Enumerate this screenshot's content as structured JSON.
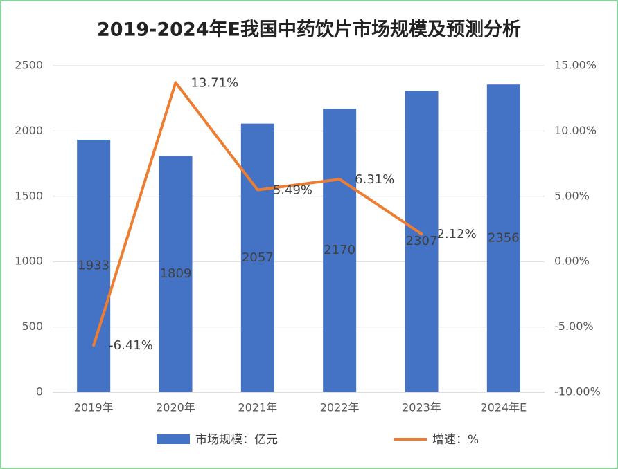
{
  "chart_data": {
    "type": "bar-line",
    "title": "2019-2024年E我国中药饮片市场规模及预测分析",
    "categories": [
      "2019年",
      "2020年",
      "2021年",
      "2022年",
      "2023年",
      "2024年E"
    ],
    "series": [
      {
        "name": "市场规模：亿元",
        "type": "bar",
        "color": "#4472c4",
        "axis": "y",
        "values": [
          1933,
          1809,
          2057,
          2170,
          2307,
          2356
        ]
      },
      {
        "name": "增速：%",
        "type": "line",
        "color": "#ed7d31",
        "axis": "y2",
        "values": [
          -6.41,
          13.71,
          5.49,
          6.31,
          2.12,
          null
        ],
        "value_labels": [
          "-6.41%",
          "13.71%",
          "5.49%",
          "6.31%",
          "2.12%",
          null
        ]
      }
    ],
    "ylim": [
      0,
      2500
    ],
    "yticks": [
      0,
      500,
      1000,
      1500,
      2000,
      2500
    ],
    "y2lim": [
      -10,
      15
    ],
    "y2ticks": [
      {
        "value": -10,
        "label": "-10.00%"
      },
      {
        "value": -5,
        "label": "-5.00%"
      },
      {
        "value": 0,
        "label": "0.00%"
      },
      {
        "value": 5,
        "label": "5.00%"
      },
      {
        "value": 10,
        "label": "10.00%"
      },
      {
        "value": 15,
        "label": "15.00%"
      }
    ],
    "grid": true,
    "legend": "bottom"
  }
}
